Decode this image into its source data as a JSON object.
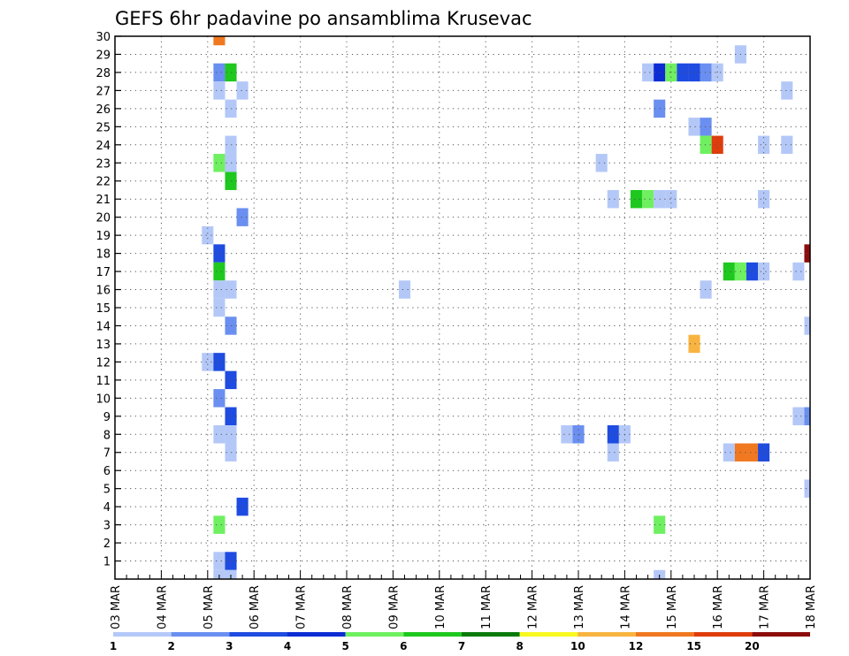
{
  "chart_data": {
    "type": "heatmap",
    "title": "GEFS 6hr padavine po ansamblima Krusevac",
    "xlabel": "",
    "ylabel": "",
    "x_tick_labels": [
      "03 MAR",
      "04 MAR",
      "05 MAR",
      "06 MAR",
      "07 MAR",
      "08 MAR",
      "09 MAR",
      "10 MAR",
      "11 MAR",
      "12 MAR",
      "13 MAR",
      "14 MAR",
      "15 MAR",
      "16 MAR",
      "17 MAR",
      "18 MAR"
    ],
    "y_tick_labels": [
      "1",
      "2",
      "3",
      "4",
      "5",
      "6",
      "7",
      "8",
      "9",
      "10",
      "11",
      "12",
      "13",
      "14",
      "15",
      "16",
      "17",
      "18",
      "19",
      "20",
      "21",
      "22",
      "23",
      "24",
      "25",
      "26",
      "27",
      "28",
      "29",
      "30"
    ],
    "x_range_steps": [
      0,
      60
    ],
    "y_range_members": [
      0,
      30
    ],
    "grid": true,
    "legend": {
      "placement": "bottom",
      "labels": [
        "1",
        "2",
        "3",
        "4",
        "5",
        "6",
        "7",
        "8",
        "10",
        "12",
        "15",
        "20"
      ],
      "colors": [
        "#b4c8f8",
        "#6a8ff0",
        "#1e4be0",
        "#0c2cd4",
        "#6ef060",
        "#1ec81e",
        "#0a7a0a",
        "#f8f820",
        "#f8b440",
        "#f07820",
        "#e03c0c",
        "#8c0c0c"
      ]
    },
    "cells": [
      {
        "member": 30,
        "step": 9,
        "value": 12
      },
      {
        "member": 29,
        "step": 54,
        "value": 1
      },
      {
        "member": 28,
        "step": 9,
        "value": 2
      },
      {
        "member": 28,
        "step": 10,
        "value": 6
      },
      {
        "member": 28,
        "step": 46,
        "value": 1
      },
      {
        "member": 28,
        "step": 47,
        "value": 4
      },
      {
        "member": 28,
        "step": 48,
        "value": 5
      },
      {
        "member": 28,
        "step": 49,
        "value": 3
      },
      {
        "member": 28,
        "step": 50,
        "value": 3
      },
      {
        "member": 28,
        "step": 51,
        "value": 2
      },
      {
        "member": 28,
        "step": 52,
        "value": 1
      },
      {
        "member": 27,
        "step": 9,
        "value": 1
      },
      {
        "member": 27,
        "step": 11,
        "value": 1
      },
      {
        "member": 27,
        "step": 58,
        "value": 1
      },
      {
        "member": 26,
        "step": 10,
        "value": 1
      },
      {
        "member": 26,
        "step": 47,
        "value": 2
      },
      {
        "member": 25,
        "step": 50,
        "value": 1
      },
      {
        "member": 25,
        "step": 51,
        "value": 2
      },
      {
        "member": 24,
        "step": 10,
        "value": 1
      },
      {
        "member": 24,
        "step": 51,
        "value": 5
      },
      {
        "member": 24,
        "step": 52,
        "value": 15
      },
      {
        "member": 24,
        "step": 56,
        "value": 1
      },
      {
        "member": 24,
        "step": 58,
        "value": 1
      },
      {
        "member": 23,
        "step": 9,
        "value": 5
      },
      {
        "member": 23,
        "step": 10,
        "value": 1
      },
      {
        "member": 23,
        "step": 42,
        "value": 1
      },
      {
        "member": 22,
        "step": 10,
        "value": 6
      },
      {
        "member": 21,
        "step": 43,
        "value": 1
      },
      {
        "member": 21,
        "step": 45,
        "value": 6
      },
      {
        "member": 21,
        "step": 46,
        "value": 5
      },
      {
        "member": 21,
        "step": 47,
        "value": 1
      },
      {
        "member": 21,
        "step": 48,
        "value": 1
      },
      {
        "member": 21,
        "step": 56,
        "value": 1
      },
      {
        "member": 20,
        "step": 11,
        "value": 2
      },
      {
        "member": 19,
        "step": 8,
        "value": 1
      },
      {
        "member": 18,
        "step": 9,
        "value": 3
      },
      {
        "member": 18,
        "step": 60,
        "value": 20
      },
      {
        "member": 17,
        "step": 9,
        "value": 6
      },
      {
        "member": 17,
        "step": 53,
        "value": 6
      },
      {
        "member": 17,
        "step": 54,
        "value": 5
      },
      {
        "member": 17,
        "step": 55,
        "value": 3
      },
      {
        "member": 17,
        "step": 56,
        "value": 1
      },
      {
        "member": 17,
        "step": 59,
        "value": 1
      },
      {
        "member": 16,
        "step": 9,
        "value": 1
      },
      {
        "member": 16,
        "step": 10,
        "value": 1
      },
      {
        "member": 16,
        "step": 25,
        "value": 1
      },
      {
        "member": 16,
        "step": 51,
        "value": 1
      },
      {
        "member": 15,
        "step": 9,
        "value": 1
      },
      {
        "member": 14,
        "step": 10,
        "value": 2
      },
      {
        "member": 14,
        "step": 60,
        "value": 1
      },
      {
        "member": 13,
        "step": 50,
        "value": 10
      },
      {
        "member": 12,
        "step": 8,
        "value": 1
      },
      {
        "member": 12,
        "step": 9,
        "value": 3
      },
      {
        "member": 11,
        "step": 10,
        "value": 3
      },
      {
        "member": 10,
        "step": 9,
        "value": 2
      },
      {
        "member": 9,
        "step": 10,
        "value": 3
      },
      {
        "member": 9,
        "step": 59,
        "value": 1
      },
      {
        "member": 9,
        "step": 60,
        "value": 2
      },
      {
        "member": 8,
        "step": 9,
        "value": 1
      },
      {
        "member": 8,
        "step": 10,
        "value": 1
      },
      {
        "member": 8,
        "step": 39,
        "value": 1
      },
      {
        "member": 8,
        "step": 40,
        "value": 2
      },
      {
        "member": 8,
        "step": 43,
        "value": 3
      },
      {
        "member": 8,
        "step": 44,
        "value": 1
      },
      {
        "member": 7,
        "step": 10,
        "value": 1
      },
      {
        "member": 7,
        "step": 43,
        "value": 1
      },
      {
        "member": 7,
        "step": 53,
        "value": 1
      },
      {
        "member": 7,
        "step": 54,
        "value": 12
      },
      {
        "member": 7,
        "step": 55,
        "value": 12
      },
      {
        "member": 7,
        "step": 56,
        "value": 3
      },
      {
        "member": 5,
        "step": 60,
        "value": 1
      },
      {
        "member": 4,
        "step": 11,
        "value": 3
      },
      {
        "member": 3,
        "step": 9,
        "value": 5
      },
      {
        "member": 3,
        "step": 47,
        "value": 5
      },
      {
        "member": 1,
        "step": 9,
        "value": 1
      },
      {
        "member": 1,
        "step": 10,
        "value": 3
      },
      {
        "member": 0,
        "step": 9,
        "value": 1
      },
      {
        "member": 0,
        "step": 10,
        "value": 1
      },
      {
        "member": 0,
        "step": 47,
        "value": 1
      }
    ]
  }
}
